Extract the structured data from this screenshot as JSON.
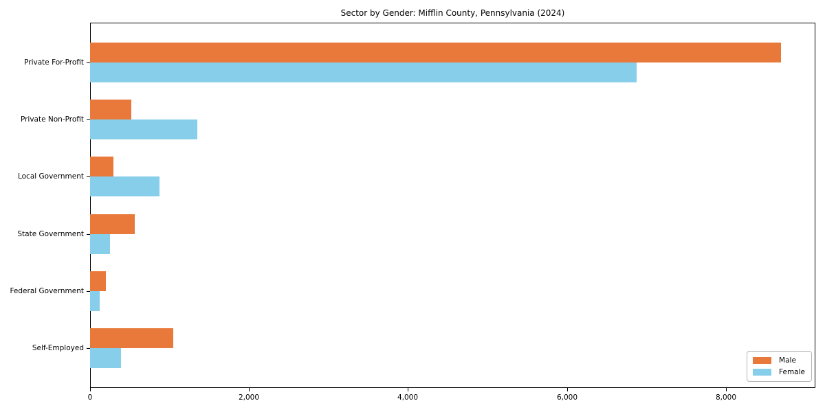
{
  "title": "Sector by Gender: Mifflin County, Pennsylvania (2024)",
  "chart_data": {
    "type": "bar",
    "orientation": "horizontal",
    "title": "Sector by Gender: Mifflin County, Pennsylvania (2024)",
    "categories": [
      "Private For-Profit",
      "Private Non-Profit",
      "Local Government",
      "State Government",
      "Federal Government",
      "Self-Employed"
    ],
    "series": [
      {
        "name": "Male",
        "color": "#e8793a",
        "values": [
          8690,
          515,
          290,
          565,
          195,
          1050
        ]
      },
      {
        "name": "Female",
        "color": "#87ceeb",
        "values": [
          6875,
          1345,
          875,
          250,
          125,
          385
        ]
      }
    ],
    "xlabel": "",
    "ylabel": "",
    "xlim": [
      0,
      9125
    ],
    "xticks": [
      0,
      2000,
      4000,
      6000,
      8000
    ],
    "xtick_labels": [
      "0",
      "2,000",
      "4,000",
      "6,000",
      "8,000"
    ],
    "grid": false,
    "legend_position": "lower right"
  },
  "colors": {
    "male": "#e8793a",
    "female": "#87ceeb",
    "axis": "#000000",
    "background": "#ffffff",
    "legend_border": "#b4b4b4"
  }
}
